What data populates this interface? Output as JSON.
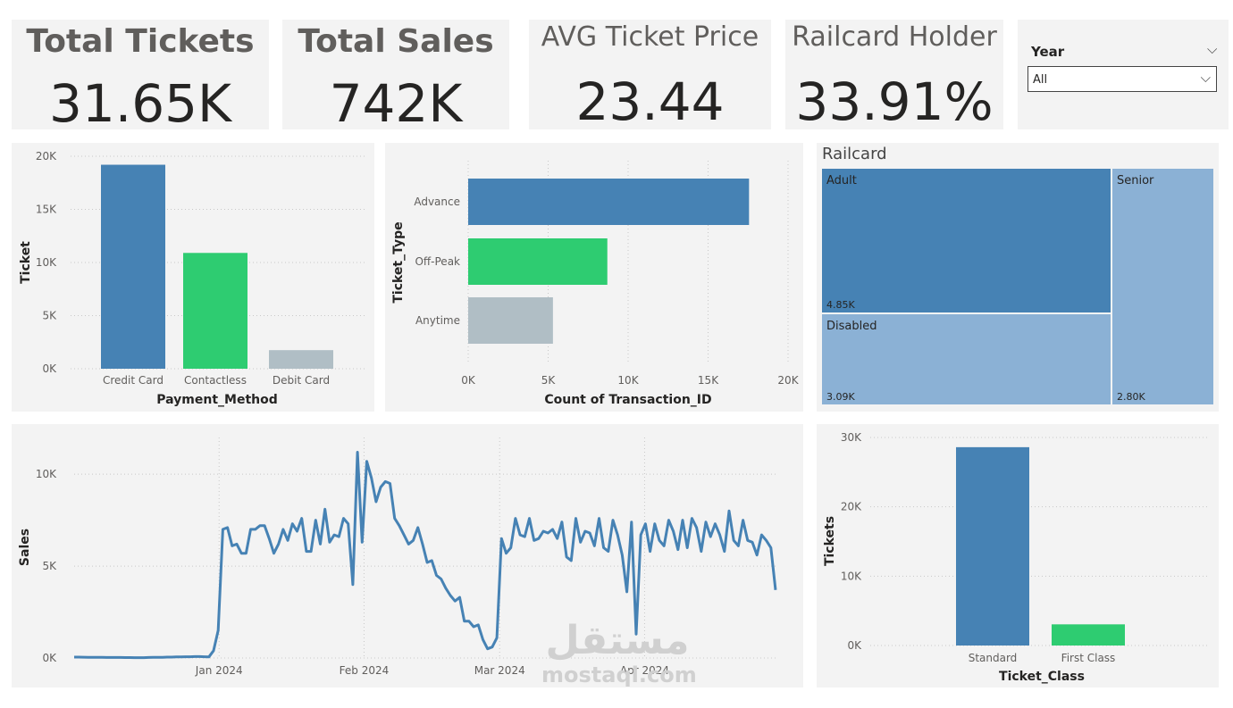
{
  "kpis": {
    "total_tickets": {
      "title": "Total Tickets",
      "value": "31.65K"
    },
    "total_sales": {
      "title": "Total Sales",
      "value": "742K"
    },
    "avg_price": {
      "title": "AVG Ticket Price",
      "value": "23.44"
    },
    "railcard": {
      "title": "Railcard Holder",
      "value": "33.91%"
    }
  },
  "slicer": {
    "label": "Year",
    "selected": "All",
    "chevron": "⌵"
  },
  "colors": {
    "blue": "#4682b4",
    "green": "#2ecc71",
    "gray": "#b0bec5",
    "tm_dark": "#4682b4",
    "tm_light": "#8bb1d5"
  },
  "watermark": {
    "arabic": "مستقل",
    "latin": "mostaql.com"
  },
  "chart_data": [
    {
      "id": "payment",
      "type": "bar",
      "title": "",
      "categories": [
        "Credit Card",
        "Contactless",
        "Debit Card"
      ],
      "values": [
        19200,
        10900,
        1750
      ],
      "xlabel": "Payment_Method",
      "ylabel": "Ticket",
      "ylim": [
        0,
        20000
      ],
      "yticks": [
        "0K",
        "5K",
        "10K",
        "15K",
        "20K"
      ]
    },
    {
      "id": "ticket_type",
      "type": "bar",
      "orientation": "horizontal",
      "categories": [
        "Advance",
        "Off-Peak",
        "Anytime"
      ],
      "values": [
        17560,
        8700,
        5300
      ],
      "xlabel": "Count of Transaction_ID",
      "ylabel": "Ticket_Type",
      "xlim": [
        0,
        20000
      ],
      "xticks": [
        "0K",
        "5K",
        "10K",
        "15K",
        "20K"
      ]
    },
    {
      "id": "railcard",
      "type": "treemap",
      "title": "Railcard",
      "items": [
        {
          "label": "Adult",
          "value": 4850,
          "display": "4.85K"
        },
        {
          "label": "Disabled",
          "value": 3090,
          "display": "3.09K"
        },
        {
          "label": "Senior",
          "value": 2800,
          "display": "2.80K"
        }
      ]
    },
    {
      "id": "sales_over_time",
      "type": "line",
      "xlabel": "",
      "ylabel": "Sales",
      "ylim": [
        0,
        12000
      ],
      "yticks": [
        "0K",
        "5K",
        "10K"
      ],
      "x_range_days": [
        0,
        150
      ],
      "x_ticks": [
        {
          "label": "Jan 2024",
          "day": 31
        },
        {
          "label": "Feb 2024",
          "day": 62
        },
        {
          "label": "Mar 2024",
          "day": 91
        },
        {
          "label": "Apr 2024",
          "day": 122
        }
      ],
      "y": [
        50,
        50,
        45,
        40,
        40,
        35,
        35,
        30,
        30,
        30,
        30,
        25,
        25,
        20,
        20,
        20,
        30,
        40,
        40,
        40,
        50,
        50,
        60,
        60,
        70,
        70,
        80,
        80,
        70,
        60,
        400,
        1500,
        7000,
        7100,
        6100,
        6200,
        5700,
        5700,
        7000,
        7000,
        7200,
        7200,
        6500,
        5700,
        6200,
        7000,
        6400,
        7300,
        6900,
        7600,
        5800,
        5800,
        7500,
        6200,
        8100,
        6300,
        6700,
        6600,
        7600,
        7300,
        4000,
        11200,
        6300,
        10700,
        9800,
        8500,
        9300,
        9600,
        9500,
        7600,
        7200,
        6700,
        6200,
        6400,
        7100,
        6200,
        5200,
        5300,
        4500,
        4300,
        3800,
        3400,
        3100,
        3300,
        2000,
        2000,
        1700,
        1800,
        1000,
        500,
        600,
        1100,
        6500,
        5700,
        6000,
        7600,
        6700,
        6600,
        7600,
        6400,
        6500,
        6900,
        6800,
        7000,
        6500,
        7400,
        5500,
        5300,
        7600,
        6300,
        6900,
        6800,
        6100,
        7600,
        6000,
        5800,
        7500,
        6700,
        5600,
        3600,
        7400,
        1300,
        6700,
        7300,
        5800,
        7300,
        6400,
        6100,
        7500,
        6900,
        5900,
        7500,
        6000,
        7600,
        7100,
        5800,
        7400,
        6600,
        7300,
        6700,
        5800,
        8000,
        6400,
        6100,
        7500,
        6400,
        6300,
        5600,
        6700,
        6400,
        6000,
        3700
      ]
    },
    {
      "id": "ticket_class",
      "type": "bar",
      "categories": [
        "Standard",
        "First Class"
      ],
      "values": [
        28600,
        3050
      ],
      "xlabel": "Ticket_Class",
      "ylabel": "Tickets",
      "ylim": [
        0,
        30000
      ],
      "yticks": [
        "0K",
        "10K",
        "20K",
        "30K"
      ]
    }
  ]
}
